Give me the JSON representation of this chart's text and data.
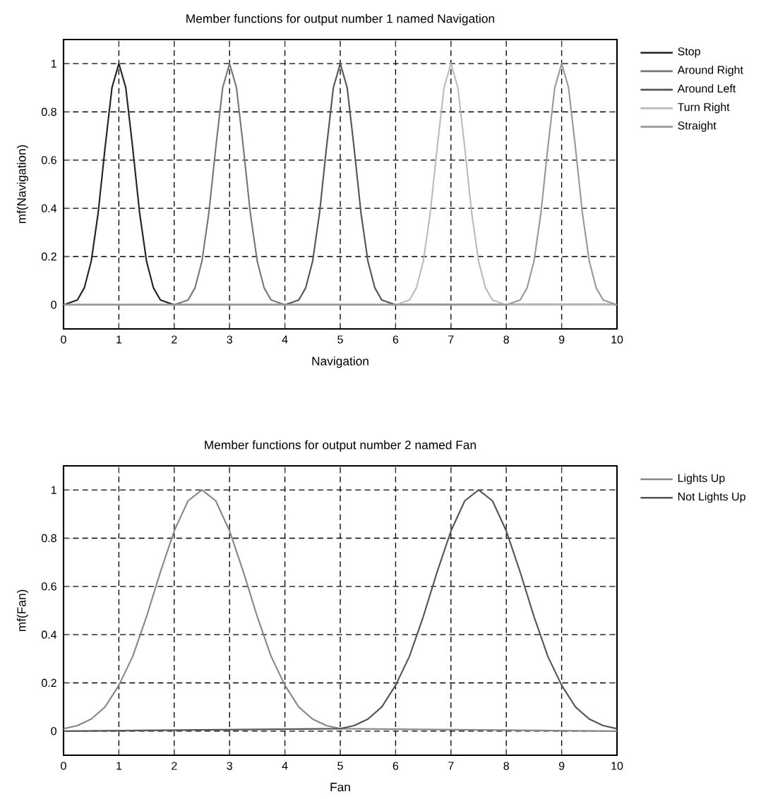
{
  "chart_data": [
    {
      "type": "line",
      "title": "Member functions for output number 1 named Navigation",
      "xlabel": "Navigation",
      "ylabel": "mf(Navigation)",
      "xlim": [
        0,
        10
      ],
      "ylim": [
        -0.1,
        1.1
      ],
      "xticks": [
        0,
        1,
        2,
        3,
        4,
        5,
        6,
        7,
        8,
        9,
        10
      ],
      "yticks": [
        0,
        0.2,
        0.4,
        0.6,
        0.8,
        1
      ],
      "grid": true,
      "legend": "top right",
      "series": [
        {
          "name": "Stop",
          "color": "#222222",
          "x": [
            0,
            0.125,
            0.25,
            0.375,
            0.5,
            0.625,
            0.75,
            0.875,
            1,
            1.125,
            1.25,
            1.375,
            1.5,
            1.625,
            1.75,
            1.875,
            2,
            10
          ],
          "values": [
            0,
            0.01,
            0.02,
            0.07,
            0.18,
            0.38,
            0.65,
            0.9,
            1,
            0.9,
            0.65,
            0.38,
            0.18,
            0.07,
            0.02,
            0.01,
            0,
            0
          ]
        },
        {
          "name": "Around Right",
          "color": "#777777",
          "x": [
            0,
            2,
            2.125,
            2.25,
            2.375,
            2.5,
            2.625,
            2.75,
            2.875,
            3,
            3.125,
            3.25,
            3.375,
            3.5,
            3.625,
            3.75,
            3.875,
            4,
            10
          ],
          "values": [
            0,
            0,
            0.01,
            0.02,
            0.07,
            0.18,
            0.38,
            0.65,
            0.9,
            1,
            0.9,
            0.65,
            0.38,
            0.18,
            0.07,
            0.02,
            0.01,
            0,
            0
          ]
        },
        {
          "name": "Around Left",
          "color": "#555555",
          "x": [
            0,
            4,
            4.125,
            4.25,
            4.375,
            4.5,
            4.625,
            4.75,
            4.875,
            5,
            5.125,
            5.25,
            5.375,
            5.5,
            5.625,
            5.75,
            5.875,
            6,
            10
          ],
          "values": [
            0,
            0,
            0.01,
            0.02,
            0.07,
            0.18,
            0.38,
            0.65,
            0.9,
            1,
            0.9,
            0.65,
            0.38,
            0.18,
            0.07,
            0.02,
            0.01,
            0,
            0
          ]
        },
        {
          "name": "Turn Right",
          "color": "#bbbbbb",
          "x": [
            0,
            6,
            6.125,
            6.25,
            6.375,
            6.5,
            6.625,
            6.75,
            6.875,
            7,
            7.125,
            7.25,
            7.375,
            7.5,
            7.625,
            7.75,
            7.875,
            8,
            10
          ],
          "values": [
            0,
            0,
            0.01,
            0.02,
            0.07,
            0.18,
            0.38,
            0.65,
            0.9,
            1,
            0.9,
            0.65,
            0.38,
            0.18,
            0.07,
            0.02,
            0.01,
            0,
            0
          ]
        },
        {
          "name": "Straight",
          "color": "#999999",
          "x": [
            0,
            8,
            8.125,
            8.25,
            8.375,
            8.5,
            8.625,
            8.75,
            8.875,
            9,
            9.125,
            9.25,
            9.375,
            9.5,
            9.625,
            9.75,
            9.875,
            10
          ],
          "values": [
            0,
            0,
            0.01,
            0.02,
            0.07,
            0.18,
            0.38,
            0.65,
            0.9,
            1,
            0.9,
            0.65,
            0.38,
            0.18,
            0.07,
            0.02,
            0.01,
            0
          ]
        }
      ]
    },
    {
      "type": "line",
      "title": "Member functions for output number 2 named Fan",
      "xlabel": "Fan",
      "ylabel": "mf(Fan)",
      "xlim": [
        0,
        10
      ],
      "ylim": [
        -0.1,
        1.1
      ],
      "xticks": [
        0,
        1,
        2,
        3,
        4,
        5,
        6,
        7,
        8,
        9,
        10
      ],
      "yticks": [
        0,
        0.2,
        0.4,
        0.6,
        0.8,
        1
      ],
      "grid": true,
      "legend": "top right",
      "series": [
        {
          "name": "Lights Up",
          "color": "#888888",
          "x": [
            0,
            0.25,
            0.5,
            0.75,
            1,
            1.25,
            1.5,
            1.75,
            2,
            2.25,
            2.5,
            2.75,
            3,
            3.25,
            3.5,
            3.75,
            4,
            4.25,
            4.5,
            4.75,
            5,
            10
          ],
          "values": [
            0.01,
            0.023,
            0.05,
            0.1,
            0.19,
            0.31,
            0.475,
            0.66,
            0.83,
            0.955,
            1,
            0.955,
            0.83,
            0.66,
            0.475,
            0.31,
            0.19,
            0.1,
            0.05,
            0.023,
            0.01,
            0
          ]
        },
        {
          "name": "Not Lights Up",
          "color": "#555555",
          "x": [
            0,
            5,
            5.25,
            5.5,
            5.75,
            6,
            6.25,
            6.5,
            6.75,
            7,
            7.25,
            7.5,
            7.75,
            8,
            8.25,
            8.5,
            8.75,
            9,
            9.25,
            9.5,
            9.75,
            10
          ],
          "values": [
            0,
            0.01,
            0.023,
            0.05,
            0.1,
            0.19,
            0.31,
            0.475,
            0.66,
            0.83,
            0.955,
            1,
            0.955,
            0.83,
            0.66,
            0.475,
            0.31,
            0.19,
            0.1,
            0.05,
            0.023,
            0.01
          ]
        }
      ]
    }
  ]
}
